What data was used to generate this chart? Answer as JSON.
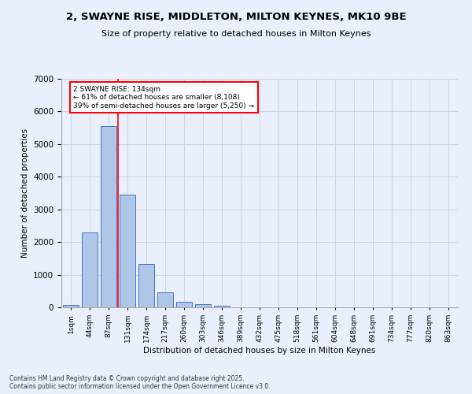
{
  "title_line1": "2, SWAYNE RISE, MIDDLETON, MILTON KEYNES, MK10 9BE",
  "title_line2": "Size of property relative to detached houses in Milton Keynes",
  "categories": [
    "1sqm",
    "44sqm",
    "87sqm",
    "131sqm",
    "174sqm",
    "217sqm",
    "260sqm",
    "303sqm",
    "346sqm",
    "389sqm",
    "432sqm",
    "475sqm",
    "518sqm",
    "561sqm",
    "604sqm",
    "648sqm",
    "691sqm",
    "734sqm",
    "777sqm",
    "820sqm",
    "863sqm"
  ],
  "values": [
    75,
    2300,
    5550,
    3450,
    1320,
    470,
    170,
    90,
    50,
    0,
    0,
    0,
    0,
    0,
    0,
    0,
    0,
    0,
    0,
    0,
    0
  ],
  "bar_color": "#aec6e8",
  "bar_edge_color": "#4472c4",
  "background_color": "#eaf0fb",
  "ylabel": "Number of detached properties",
  "xlabel": "Distribution of detached houses by size in Milton Keynes",
  "ylim": [
    0,
    7000
  ],
  "vline_color": "red",
  "annotation_title": "2 SWAYNE RISE: 134sqm",
  "annotation_line1": "← 61% of detached houses are smaller (8,108)",
  "annotation_line2": "39% of semi-detached houses are larger (5,250) →",
  "annotation_box_color": "red",
  "footer_line1": "Contains HM Land Registry data © Crown copyright and database right 2025.",
  "footer_line2": "Contains public sector information licensed under the Open Government Licence v3.0.",
  "grid_color": "#c8d4e8"
}
